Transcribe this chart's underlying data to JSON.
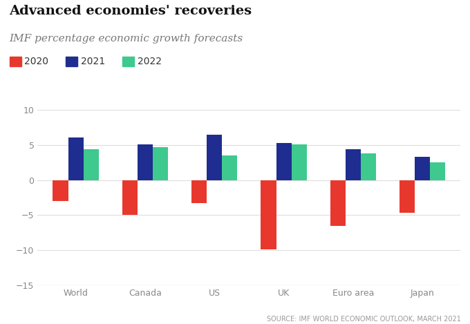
{
  "title": "Advanced economies' recoveries",
  "subtitle": "IMF percentage economic growth forecasts",
  "source": "SOURCE: IMF WORLD ECONOMIC OUTLOOK, MARCH 2021",
  "categories": [
    "World",
    "Canada",
    "US",
    "UK",
    "Euro area",
    "Japan"
  ],
  "series": {
    "2020": [
      -3.0,
      -5.0,
      -3.3,
      -9.9,
      -6.5,
      -4.7
    ],
    "2021": [
      6.1,
      5.1,
      6.5,
      5.3,
      4.4,
      3.3
    ],
    "2022": [
      4.4,
      4.7,
      3.5,
      5.1,
      3.8,
      2.5
    ]
  },
  "colors": {
    "2020": "#e8382d",
    "2021": "#1e2d8f",
    "2022": "#3ec98e"
  },
  "ylim": [
    -15,
    10
  ],
  "yticks": [
    -15,
    -10,
    -5,
    0,
    5,
    10
  ],
  "bar_width": 0.22,
  "background_color": "#ffffff",
  "title_fontsize": 14,
  "subtitle_fontsize": 11,
  "legend_fontsize": 10,
  "tick_fontsize": 9,
  "source_fontsize": 7
}
